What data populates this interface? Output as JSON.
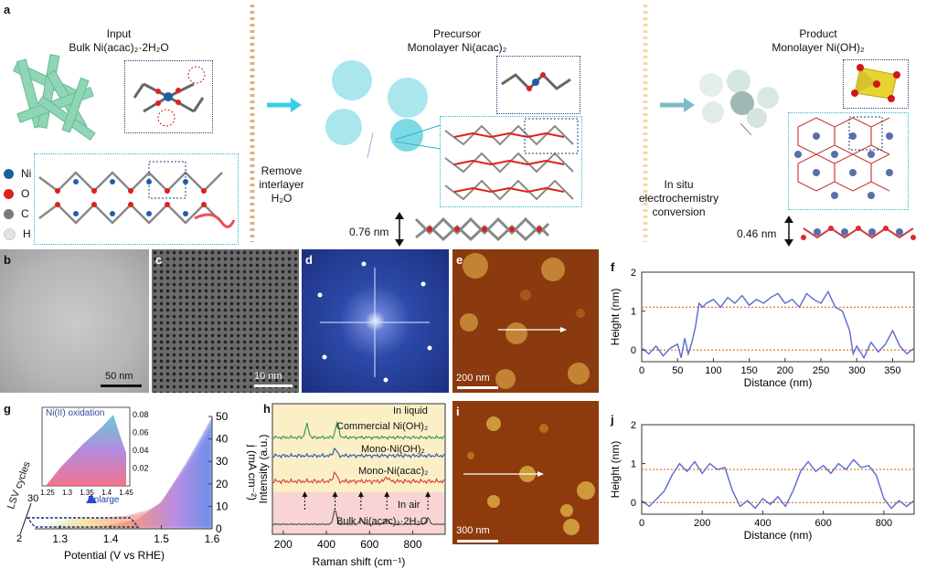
{
  "panel_a": {
    "label": "a",
    "input_title": "Input",
    "input_sub": "Bulk Ni(acac)₂·2H₂O",
    "precursor_title": "Precursor",
    "precursor_sub": "Monolayer Ni(acac)₂",
    "product_title": "Product",
    "product_sub": "Monolayer Ni(OH)₂",
    "step1": [
      "Remove",
      "interlayer",
      "H₂O"
    ],
    "step2": [
      "In situ",
      "electrochemistry",
      "conversion"
    ],
    "thickness_precursor": "0.76 nm",
    "thickness_product": "0.46 nm",
    "legend": [
      {
        "label": "Ni",
        "color": "#1f5fa8"
      },
      {
        "label": "O",
        "color": "#e0201b"
      },
      {
        "label": "C",
        "color": "#7a7a7a"
      },
      {
        "label": "H",
        "color": "#e3e3e3"
      }
    ]
  },
  "panel_b": {
    "label": "b",
    "scale": "50 nm"
  },
  "panel_c": {
    "label": "c",
    "scale": "10 nm"
  },
  "panel_d": {
    "label": "d"
  },
  "panel_e": {
    "label": "e",
    "scale": "200 nm"
  },
  "panel_i": {
    "label": "i",
    "scale": "300 nm"
  },
  "panel_f": {
    "label": "f"
  },
  "panel_j": {
    "label": "j"
  },
  "panel_g": {
    "label": "g",
    "inset_label": "Ni(II) oxidation",
    "enlarge": "Enlarge",
    "cycles_label": "LSV cycles"
  },
  "panel_h": {
    "label": "h",
    "in_liquid": "In liquid",
    "in_air": "In air",
    "trace_labels": [
      "Commercial Ni(OH)₂",
      "Mono-Ni(OH)₂",
      "Mono-Ni(acac)₂",
      "Bulk Ni(acac)₂·2H₂O"
    ]
  },
  "chart_data": [
    {
      "type": "line",
      "panel": "f",
      "xlabel": "Distance (nm)",
      "ylabel": "Height (nm)",
      "xlim": [
        0,
        380
      ],
      "ylim": [
        -0.3,
        2.0
      ],
      "xticks": [
        0,
        50,
        100,
        150,
        200,
        250,
        300,
        350
      ],
      "yticks": [
        0,
        1,
        2
      ],
      "reference_lines": [
        0,
        1.1
      ],
      "x": [
        0,
        10,
        20,
        30,
        40,
        50,
        55,
        60,
        65,
        70,
        75,
        80,
        85,
        90,
        100,
        110,
        120,
        130,
        140,
        150,
        160,
        170,
        180,
        190,
        200,
        210,
        220,
        230,
        240,
        250,
        260,
        270,
        280,
        290,
        295,
        300,
        310,
        320,
        330,
        340,
        350,
        360,
        370,
        380
      ],
      "y": [
        0.05,
        -0.1,
        0.1,
        -0.15,
        0.05,
        0.15,
        -0.2,
        0.3,
        -0.1,
        0.2,
        0.6,
        1.2,
        1.1,
        1.2,
        1.3,
        1.1,
        1.35,
        1.2,
        1.4,
        1.15,
        1.3,
        1.2,
        1.35,
        1.45,
        1.2,
        1.3,
        1.1,
        1.45,
        1.3,
        1.2,
        1.5,
        1.1,
        1.0,
        0.5,
        -0.1,
        0.1,
        -0.2,
        0.2,
        -0.05,
        0.15,
        0.5,
        0.1,
        -0.1,
        0.05
      ]
    },
    {
      "type": "line",
      "panel": "j",
      "xlabel": "Distance (nm)",
      "ylabel": "Height (nm)",
      "xlim": [
        0,
        900
      ],
      "ylim": [
        -0.3,
        2.0
      ],
      "xticks": [
        0,
        200,
        400,
        600,
        800
      ],
      "yticks": [
        0,
        1,
        2
      ],
      "reference_lines": [
        0,
        0.85
      ],
      "x": [
        0,
        25,
        50,
        75,
        100,
        125,
        150,
        175,
        200,
        225,
        250,
        275,
        300,
        325,
        350,
        375,
        400,
        425,
        450,
        475,
        500,
        525,
        550,
        575,
        600,
        625,
        650,
        675,
        700,
        725,
        750,
        775,
        800,
        825,
        850,
        875,
        900
      ],
      "y": [
        0.05,
        -0.1,
        0.1,
        0.3,
        0.7,
        1.0,
        0.8,
        1.05,
        0.75,
        1.0,
        0.85,
        0.9,
        0.3,
        -0.1,
        0.05,
        -0.15,
        0.1,
        -0.05,
        0.15,
        -0.1,
        0.3,
        0.8,
        1.05,
        0.8,
        0.95,
        0.75,
        1.0,
        0.85,
        1.1,
        0.9,
        0.95,
        0.7,
        0.1,
        -0.15,
        0.05,
        -0.1,
        0.05
      ]
    },
    {
      "type": "area",
      "panel": "g",
      "xlabel": "Potential (V vs RHE)",
      "ylabel": "j (mA cm⁻²)",
      "xlim": [
        1.25,
        1.6
      ],
      "ylim": [
        0,
        50
      ],
      "xticks": [
        1.3,
        1.4,
        1.5,
        1.6
      ],
      "yticks": [
        0,
        10,
        20,
        30,
        40,
        50
      ],
      "cycle_axis": [
        2,
        30
      ],
      "inset": {
        "xticks": [
          1.25,
          1.3,
          1.35,
          1.4,
          1.45
        ],
        "yticks": [
          0.02,
          0.04,
          0.06,
          0.08
        ]
      },
      "x": [
        1.25,
        1.3,
        1.35,
        1.4,
        1.45,
        1.5,
        1.55,
        1.6
      ],
      "series": [
        {
          "name": "2",
          "values": [
            0,
            0,
            0.5,
            1,
            2,
            5,
            10,
            15
          ]
        },
        {
          "name": "30",
          "values": [
            0,
            0.5,
            1,
            2,
            4,
            12,
            30,
            50
          ]
        }
      ]
    },
    {
      "type": "line",
      "panel": "h",
      "xlabel": "Raman shift (cm⁻¹)",
      "ylabel": "Intensity (a.u.)",
      "xlim": [
        150,
        950
      ],
      "xticks": [
        200,
        400,
        600,
        800
      ],
      "peak_markers": [
        300,
        440,
        560,
        680,
        870
      ]
    }
  ]
}
